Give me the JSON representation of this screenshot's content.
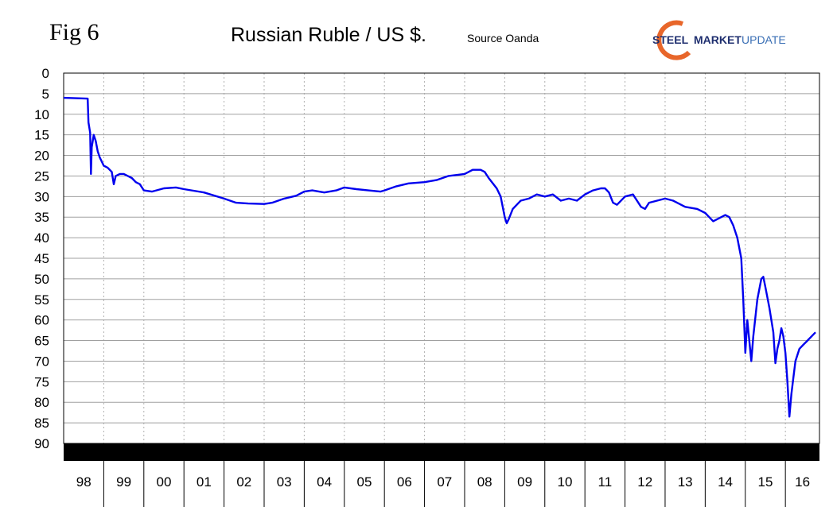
{
  "header": {
    "fig_label": "Fig 6",
    "title": "Russian Ruble / US $.",
    "source": "Source Oanda"
  },
  "logo": {
    "word1": "STEEL",
    "word2": "MARKET",
    "word3": "UPDATE",
    "colors": {
      "navy": "#1f2f6f",
      "orange": "#e8662a",
      "blue": "#3a6fb5"
    }
  },
  "chart_data": {
    "type": "line",
    "title": "Russian Ruble / US $.",
    "xlabel": "",
    "ylabel": "",
    "y_inverted": true,
    "ylim": [
      0,
      90
    ],
    "yticks": [
      0,
      5,
      10,
      15,
      20,
      25,
      30,
      35,
      40,
      45,
      50,
      55,
      60,
      65,
      70,
      75,
      80,
      85,
      90
    ],
    "xlim": [
      1998,
      2016.85
    ],
    "year_labels": [
      "98",
      "99",
      "00",
      "01",
      "02",
      "03",
      "04",
      "05",
      "06",
      "07",
      "08",
      "09",
      "10",
      "11",
      "12",
      "13",
      "14",
      "15",
      "16"
    ],
    "grid": true,
    "line_color": "#0000ee",
    "series": [
      {
        "values": [
          [
            1998.0,
            6.0
          ],
          [
            1998.3,
            6.1
          ],
          [
            1998.6,
            6.2
          ],
          [
            1998.62,
            12.0
          ],
          [
            1998.66,
            14.5
          ],
          [
            1998.68,
            24.5
          ],
          [
            1998.7,
            18.0
          ],
          [
            1998.75,
            15.0
          ],
          [
            1998.8,
            16.5
          ],
          [
            1998.85,
            19.0
          ],
          [
            1998.9,
            20.5
          ],
          [
            1999.0,
            22.5
          ],
          [
            1999.1,
            23.0
          ],
          [
            1999.2,
            24.0
          ],
          [
            1999.25,
            27.0
          ],
          [
            1999.3,
            25.0
          ],
          [
            1999.4,
            24.5
          ],
          [
            1999.5,
            24.5
          ],
          [
            1999.6,
            25.0
          ],
          [
            1999.7,
            25.5
          ],
          [
            1999.8,
            26.5
          ],
          [
            1999.9,
            27.0
          ],
          [
            2000.0,
            28.5
          ],
          [
            2000.2,
            28.8
          ],
          [
            2000.5,
            28.0
          ],
          [
            2000.8,
            27.8
          ],
          [
            2001.0,
            28.2
          ],
          [
            2001.5,
            29.0
          ],
          [
            2002.0,
            30.5
          ],
          [
            2002.3,
            31.5
          ],
          [
            2002.6,
            31.7
          ],
          [
            2003.0,
            31.8
          ],
          [
            2003.2,
            31.5
          ],
          [
            2003.5,
            30.5
          ],
          [
            2003.8,
            29.8
          ],
          [
            2004.0,
            28.8
          ],
          [
            2004.2,
            28.5
          ],
          [
            2004.5,
            29.0
          ],
          [
            2004.8,
            28.5
          ],
          [
            2005.0,
            27.8
          ],
          [
            2005.3,
            28.2
          ],
          [
            2005.6,
            28.5
          ],
          [
            2005.9,
            28.8
          ],
          [
            2006.0,
            28.5
          ],
          [
            2006.3,
            27.5
          ],
          [
            2006.6,
            26.8
          ],
          [
            2007.0,
            26.5
          ],
          [
            2007.3,
            26.0
          ],
          [
            2007.6,
            25.0
          ],
          [
            2008.0,
            24.5
          ],
          [
            2008.2,
            23.5
          ],
          [
            2008.4,
            23.5
          ],
          [
            2008.5,
            24.0
          ],
          [
            2008.6,
            25.5
          ],
          [
            2008.8,
            28.0
          ],
          [
            2008.9,
            30.0
          ],
          [
            2009.0,
            35.0
          ],
          [
            2009.05,
            36.5
          ],
          [
            2009.1,
            35.5
          ],
          [
            2009.2,
            33.0
          ],
          [
            2009.4,
            31.0
          ],
          [
            2009.6,
            30.5
          ],
          [
            2009.8,
            29.5
          ],
          [
            2010.0,
            30.0
          ],
          [
            2010.2,
            29.5
          ],
          [
            2010.4,
            31.0
          ],
          [
            2010.6,
            30.5
          ],
          [
            2010.8,
            31.0
          ],
          [
            2011.0,
            29.5
          ],
          [
            2011.2,
            28.5
          ],
          [
            2011.4,
            28.0
          ],
          [
            2011.5,
            28.0
          ],
          [
            2011.6,
            29.0
          ],
          [
            2011.7,
            31.5
          ],
          [
            2011.8,
            32.0
          ],
          [
            2012.0,
            30.0
          ],
          [
            2012.2,
            29.5
          ],
          [
            2012.4,
            32.5
          ],
          [
            2012.5,
            33.0
          ],
          [
            2012.6,
            31.5
          ],
          [
            2012.8,
            31.0
          ],
          [
            2013.0,
            30.5
          ],
          [
            2013.2,
            31.0
          ],
          [
            2013.5,
            32.5
          ],
          [
            2013.8,
            33.0
          ],
          [
            2014.0,
            34.0
          ],
          [
            2014.2,
            36.0
          ],
          [
            2014.3,
            35.5
          ],
          [
            2014.5,
            34.5
          ],
          [
            2014.6,
            35.0
          ],
          [
            2014.7,
            37.0
          ],
          [
            2014.8,
            40.0
          ],
          [
            2014.9,
            45.0
          ],
          [
            2014.95,
            55.0
          ],
          [
            2015.0,
            68.0
          ],
          [
            2015.05,
            60.0
          ],
          [
            2015.1,
            65.0
          ],
          [
            2015.15,
            70.0
          ],
          [
            2015.2,
            64.0
          ],
          [
            2015.3,
            55.0
          ],
          [
            2015.4,
            50.0
          ],
          [
            2015.45,
            49.5
          ],
          [
            2015.5,
            52.0
          ],
          [
            2015.6,
            57.0
          ],
          [
            2015.7,
            63.0
          ],
          [
            2015.75,
            70.5
          ],
          [
            2015.8,
            67.0
          ],
          [
            2015.85,
            65.0
          ],
          [
            2015.9,
            62.0
          ],
          [
            2015.95,
            64.0
          ],
          [
            2016.0,
            68.0
          ],
          [
            2016.05,
            75.0
          ],
          [
            2016.1,
            83.5
          ],
          [
            2016.15,
            78.0
          ],
          [
            2016.2,
            74.0
          ],
          [
            2016.25,
            70.0
          ],
          [
            2016.35,
            67.0
          ],
          [
            2016.45,
            66.0
          ],
          [
            2016.55,
            65.0
          ],
          [
            2016.65,
            64.0
          ],
          [
            2016.75,
            63.0
          ]
        ]
      }
    ]
  }
}
